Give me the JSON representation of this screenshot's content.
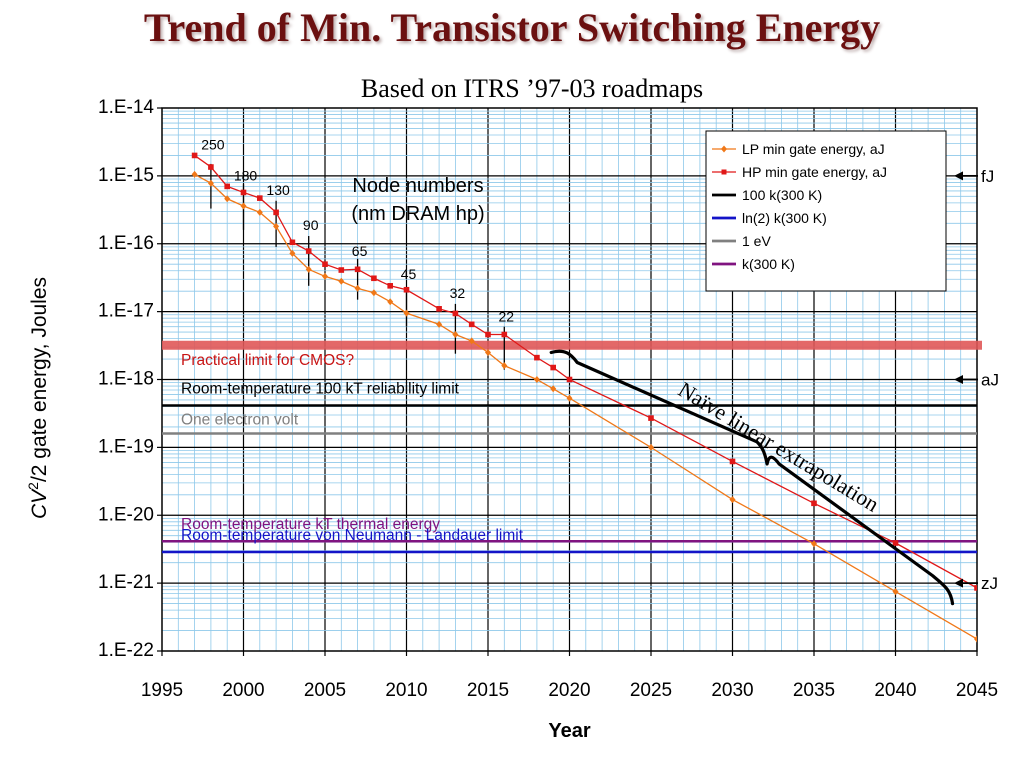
{
  "slide": {
    "title": "Trend of Min. Transistor Switching Energy",
    "subtitle": "Based on ITRS ’97-03 roadmaps"
  },
  "chart_data": {
    "type": "line",
    "title": "Trend of Min. Transistor Switching Energy",
    "subtitle": "Based on ITRS ’97-03 roadmaps",
    "xlabel": "Year",
    "ylabel": "CV²/2 gate energy, Joules",
    "ylabel_parts": {
      "italic": "CV",
      "sup": "2",
      "rest": "/2 gate energy, Joules"
    },
    "y_scale": "log",
    "xlim": [
      1995,
      2045
    ],
    "ylim": [
      1e-22,
      1e-14
    ],
    "x_ticks": [
      1995,
      2000,
      2005,
      2010,
      2015,
      2020,
      2025,
      2030,
      2035,
      2040,
      2045
    ],
    "x_tick_labels": [
      "1995",
      "2000",
      "2005",
      "2010",
      "2015",
      "2020",
      "2025",
      "2030",
      "2035",
      "2040",
      "2045"
    ],
    "y_ticks": [
      1e-14,
      1e-15,
      1e-16,
      1e-17,
      1e-18,
      1e-19,
      1e-20,
      1e-21,
      1e-22
    ],
    "y_tick_labels": [
      "1.E-14",
      "1.E-15",
      "1.E-16",
      "1.E-17",
      "1.E-18",
      "1.E-19",
      "1.E-20",
      "1.E-21",
      "1.E-22"
    ],
    "grid": true,
    "legend_position": "top-right",
    "series": [
      {
        "name": "LP min gate energy, aJ",
        "color": "#f07818",
        "marker": "diamond",
        "x": [
          1997,
          1998,
          1999,
          2000,
          2001,
          2002,
          2003,
          2004,
          2005,
          2006,
          2007,
          2008,
          2009,
          2010,
          2012,
          2013,
          2014,
          2015,
          2016,
          2018,
          2019,
          2020,
          2025,
          2030,
          2035,
          2040,
          2045
        ],
        "y": [
          1.05e-15,
          7.8e-16,
          4.6e-16,
          3.6e-16,
          2.9e-16,
          1.8e-16,
          7.2e-17,
          4.2e-17,
          3.3e-17,
          2.8e-17,
          2.2e-17,
          1.9e-17,
          1.4e-17,
          9.5e-18,
          6.5e-18,
          4.6e-18,
          3.7e-18,
          2.5e-18,
          1.6e-18,
          1e-18,
          7.3e-19,
          5.3e-19,
          1e-19,
          1.7e-20,
          3.8e-21,
          7.5e-22,
          1.5e-22
        ]
      },
      {
        "name": "HP min gate energy, aJ",
        "color": "#e01818",
        "marker": "square",
        "x": [
          1997,
          1998,
          1999,
          2000,
          2001,
          2002,
          2003,
          2004,
          2005,
          2006,
          2007,
          2008,
          2009,
          2010,
          2012,
          2013,
          2014,
          2015,
          2016,
          2018,
          2019,
          2020,
          2025,
          2030,
          2035,
          2040,
          2045
        ],
        "y": [
          2e-15,
          1.35e-15,
          7e-16,
          5.7e-16,
          4.7e-16,
          2.9e-16,
          1.05e-16,
          7.8e-17,
          5e-17,
          4.1e-17,
          4.2e-17,
          3.1e-17,
          2.4e-17,
          2.1e-17,
          1.1e-17,
          9.4e-18,
          6.5e-18,
          4.6e-18,
          4.6e-18,
          2.1e-18,
          1.5e-18,
          1e-18,
          2.7e-19,
          6.2e-20,
          1.5e-20,
          3.9e-21,
          8.5e-22
        ]
      },
      {
        "name": "100 k(300 K)",
        "color": "#000000",
        "horizontal_value": 4.14e-19
      },
      {
        "name": "ln(2) k(300 K)",
        "color": "#1414c8",
        "horizontal_value": 2.87e-21
      },
      {
        "name": "1 eV",
        "color": "#808080",
        "horizontal_value": 1.6e-19
      },
      {
        "name": "k(300 K)",
        "color": "#801480",
        "horizontal_value": 4.14e-21
      }
    ],
    "cmos_limit_band": {
      "value": 3.2e-18,
      "color": "#e05858"
    },
    "limit_labels": [
      {
        "text": "Practical limit for CMOS?",
        "color": "#c81414",
        "value": 3.2e-18
      },
      {
        "text": "Room-temperature 100 kT reliability limit",
        "color": "#000000",
        "value": 4.14e-19
      },
      {
        "text": "One electron volt",
        "color": "#808080",
        "value": 1.6e-19
      },
      {
        "text": "Room-temperature kT thermal energy",
        "color": "#801480",
        "value": 4.14e-21
      },
      {
        "text": "Room-temperature von Neumann - Landauer limit",
        "color": "#1414c8",
        "value": 2.87e-21
      }
    ],
    "node_header": [
      "Node numbers",
      "(nm DRAM hp)"
    ],
    "nodes": [
      {
        "label": "250",
        "year": 1998,
        "label_value": 2.45e-15,
        "bar_from": 1.5e-15,
        "bar_to": 3.3e-16
      },
      {
        "label": "180",
        "year": 2000,
        "label_value": 8.5e-16,
        "bar_from": 7.5e-16,
        "bar_to": 1.6e-16
      },
      {
        "label": "130",
        "year": 2002,
        "label_value": 5.2e-16,
        "bar_from": 4.3e-16,
        "bar_to": 9e-17
      },
      {
        "label": "90",
        "year": 2004,
        "label_value": 1.6e-16,
        "bar_from": 1.3e-16,
        "bar_to": 2.4e-17
      },
      {
        "label": "65",
        "year": 2007,
        "label_value": 6.6e-17,
        "bar_from": 6e-17,
        "bar_to": 1.5e-17
      },
      {
        "label": "45",
        "year": 2010,
        "label_value": 3.05e-17,
        "bar_from": 2e-17,
        "bar_to": 6e-18
      },
      {
        "label": "32",
        "year": 2013,
        "label_value": 1.6e-17,
        "bar_from": 1.3e-17,
        "bar_to": 2.4e-18
      },
      {
        "label": "22",
        "year": 2016,
        "label_value": 7.2e-18,
        "bar_from": 6e-18,
        "bar_to": 1.4e-18
      }
    ],
    "extrapolation_label": "Naïve linear extrapolation",
    "extrapolation_bracket": {
      "start": [
        2019,
        2.5e-18
      ],
      "mid": [
        2032,
        8e-20
      ],
      "end": [
        2043.5,
        7e-22
      ]
    },
    "unit_markers": [
      {
        "text": "fJ",
        "value": 1e-15
      },
      {
        "text": "aJ",
        "value": 1e-18
      },
      {
        "text": "zJ",
        "value": 1e-21
      }
    ]
  }
}
